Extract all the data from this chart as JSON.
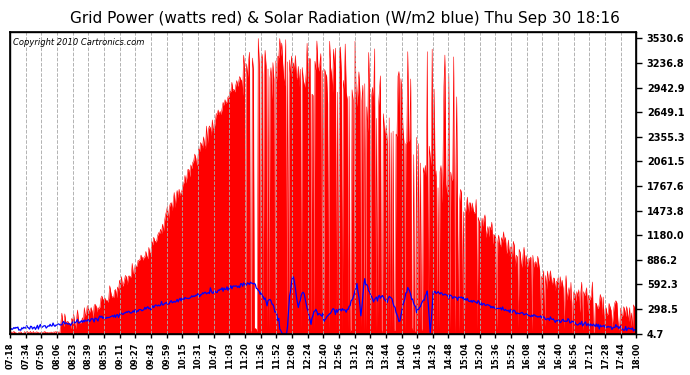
{
  "title": "Grid Power (watts red) & Solar Radiation (W/m2 blue) Thu Sep 30 18:16",
  "copyright": "Copyright 2010 Cartronics.com",
  "yticks": [
    4.7,
    298.5,
    592.3,
    886.2,
    1180.0,
    1473.8,
    1767.6,
    2061.5,
    2355.3,
    2649.1,
    2942.9,
    3236.8,
    3530.6
  ],
  "ymin": 4.7,
  "ymax": 3530.6,
  "background_color": "#ffffff",
  "plot_bg_color": "#ffffff",
  "grid_color": "#aaaaaa",
  "red_fill_color": "red",
  "blue_line_color": "blue",
  "title_fontsize": 11,
  "xtick_labels": [
    "07:18",
    "07:34",
    "07:50",
    "08:06",
    "08:23",
    "08:39",
    "08:55",
    "09:11",
    "09:27",
    "09:43",
    "09:59",
    "10:15",
    "10:31",
    "10:47",
    "11:03",
    "11:20",
    "11:36",
    "11:52",
    "12:08",
    "12:24",
    "12:40",
    "12:56",
    "13:12",
    "13:28",
    "13:44",
    "14:00",
    "14:16",
    "14:32",
    "14:48",
    "15:04",
    "15:20",
    "15:36",
    "15:52",
    "16:08",
    "16:24",
    "16:40",
    "16:56",
    "17:12",
    "17:28",
    "17:44",
    "18:00"
  ]
}
